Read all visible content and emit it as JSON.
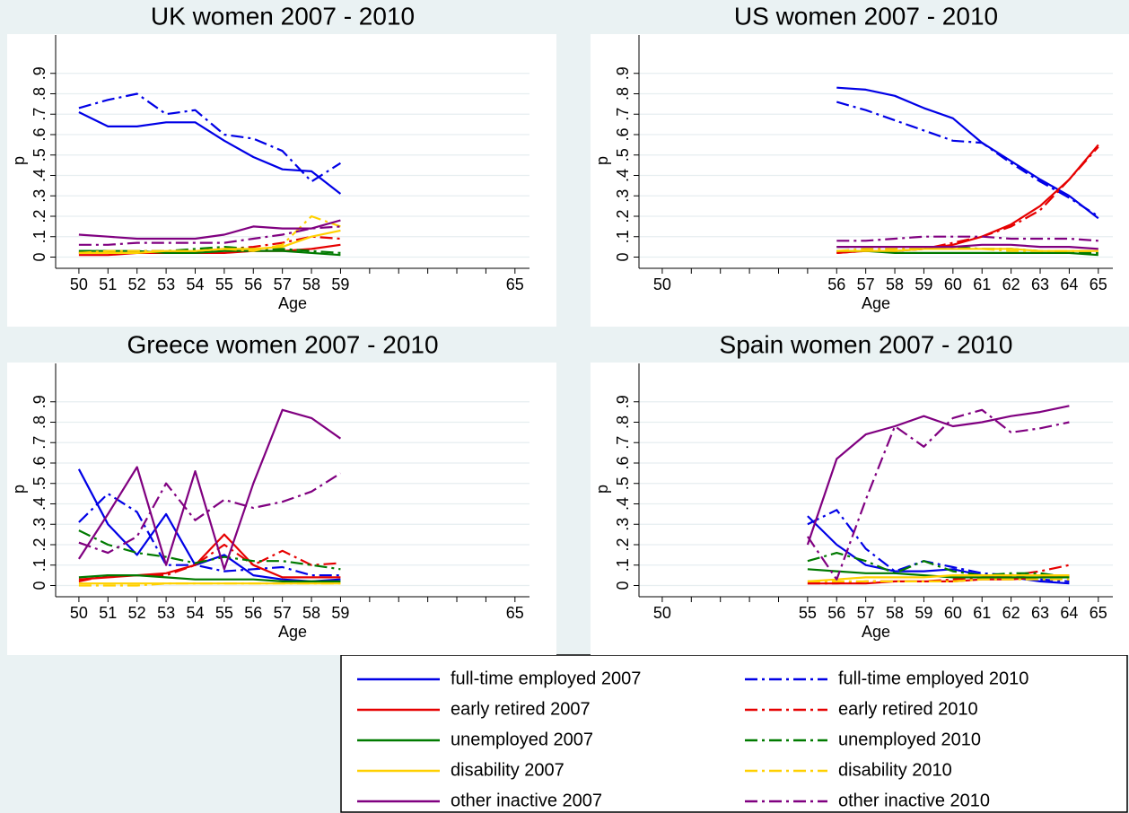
{
  "chart_data": [
    {
      "type": "line",
      "title": "UK women 2007 - 2010",
      "x_label": "Age",
      "y_label": "p",
      "x": [
        50,
        51,
        52,
        53,
        54,
        55,
        56,
        57,
        58,
        59
      ],
      "xlim": [
        49.2,
        65.5
      ],
      "ylim": [
        -0.055,
        1.0
      ],
      "xticks": [
        50,
        51,
        52,
        53,
        54,
        55,
        56,
        57,
        58,
        59,
        65
      ],
      "yticks": [
        0,
        {
          "value": 0.1,
          "label": ".1"
        },
        {
          "value": 0.2,
          "label": ".2"
        },
        {
          "value": 0.3,
          "label": ".3"
        },
        {
          "value": 0.4,
          "label": ".4"
        },
        {
          "value": 0.5,
          "label": ".5"
        },
        {
          "value": 0.6,
          "label": ".6"
        },
        {
          "value": 0.7,
          "label": ".7"
        },
        {
          "value": 0.8,
          "label": ".8"
        },
        {
          "value": 0.9,
          "label": ".9"
        }
      ],
      "grid": true,
      "series": [
        {
          "name": "full-time employed 2007",
          "color": "#0000e6",
          "linestyle": "solid",
          "values": [
            0.71,
            0.64,
            0.64,
            0.66,
            0.66,
            0.57,
            0.49,
            0.43,
            0.42,
            0.31
          ]
        },
        {
          "name": "full-time employed 2010",
          "color": "#0000e6",
          "linestyle": "dash-dot",
          "values": [
            0.73,
            0.77,
            0.8,
            0.7,
            0.72,
            0.6,
            0.58,
            0.52,
            0.37,
            0.46
          ]
        },
        {
          "name": "early retired 2007",
          "color": "#e60000",
          "linestyle": "solid",
          "values": [
            0.01,
            0.01,
            0.02,
            0.02,
            0.02,
            0.02,
            0.03,
            0.03,
            0.04,
            0.06
          ]
        },
        {
          "name": "early retired 2010",
          "color": "#e60000",
          "linestyle": "dash-dot",
          "values": [
            0.02,
            0.02,
            0.03,
            0.03,
            0.03,
            0.04,
            0.05,
            0.07,
            0.1,
            0.09
          ]
        },
        {
          "name": "unemployed 2007",
          "color": "#007a00",
          "linestyle": "solid",
          "values": [
            0.03,
            0.03,
            0.03,
            0.02,
            0.02,
            0.03,
            0.03,
            0.03,
            0.02,
            0.01
          ]
        },
        {
          "name": "unemployed 2010",
          "color": "#007a00",
          "linestyle": "dash-dot",
          "values": [
            0.03,
            0.03,
            0.03,
            0.03,
            0.04,
            0.05,
            0.04,
            0.04,
            0.03,
            0.02
          ]
        },
        {
          "name": "disability 2007",
          "color": "#ffd000",
          "linestyle": "solid",
          "values": [
            0.02,
            0.02,
            0.02,
            0.03,
            0.03,
            0.04,
            0.04,
            0.05,
            0.1,
            0.13
          ]
        },
        {
          "name": "disability 2010",
          "color": "#ffd000",
          "linestyle": "dash-dot",
          "values": [
            0.02,
            0.03,
            0.03,
            0.03,
            0.03,
            0.04,
            0.03,
            0.06,
            0.2,
            0.15
          ]
        },
        {
          "name": "other inactive 2007",
          "color": "#800080",
          "linestyle": "solid",
          "values": [
            0.11,
            0.1,
            0.09,
            0.09,
            0.09,
            0.11,
            0.15,
            0.14,
            0.14,
            0.18
          ]
        },
        {
          "name": "other inactive 2010",
          "color": "#800080",
          "linestyle": "dash-dot",
          "values": [
            0.06,
            0.06,
            0.07,
            0.07,
            0.07,
            0.07,
            0.09,
            0.11,
            0.14,
            0.15
          ]
        }
      ]
    },
    {
      "type": "line",
      "title": "US women 2007 - 2010",
      "x_label": "Age",
      "y_label": "p",
      "x": [
        56,
        57,
        58,
        59,
        60,
        61,
        62,
        63,
        64,
        65
      ],
      "xlim": [
        49.2,
        65.5
      ],
      "ylim": [
        -0.055,
        1.0
      ],
      "xticks": [
        50,
        56,
        57,
        58,
        59,
        60,
        61,
        62,
        63,
        64,
        65
      ],
      "yticks": [
        0,
        {
          "value": 0.1,
          "label": ".1"
        },
        {
          "value": 0.2,
          "label": ".2"
        },
        {
          "value": 0.3,
          "label": ".3"
        },
        {
          "value": 0.4,
          "label": ".4"
        },
        {
          "value": 0.5,
          "label": ".5"
        },
        {
          "value": 0.6,
          "label": ".6"
        },
        {
          "value": 0.7,
          "label": ".7"
        },
        {
          "value": 0.8,
          "label": ".8"
        },
        {
          "value": 0.9,
          "label": ".9"
        }
      ],
      "grid": true,
      "series": [
        {
          "name": "full-time employed 2007",
          "color": "#0000e6",
          "linestyle": "solid",
          "values": [
            0.83,
            0.82,
            0.79,
            0.73,
            0.68,
            0.56,
            0.47,
            0.38,
            0.3,
            0.19
          ]
        },
        {
          "name": "full-time employed 2010",
          "color": "#0000e6",
          "linestyle": "dash-dot",
          "values": [
            0.76,
            0.72,
            0.67,
            0.62,
            0.57,
            0.56,
            0.46,
            0.37,
            0.29,
            0.2
          ]
        },
        {
          "name": "early retired 2007",
          "color": "#e60000",
          "linestyle": "solid",
          "values": [
            0.02,
            0.03,
            0.03,
            0.04,
            0.06,
            0.1,
            0.16,
            0.25,
            0.38,
            0.55
          ]
        },
        {
          "name": "early retired 2010",
          "color": "#e60000",
          "linestyle": "dash-dot",
          "values": [
            0.02,
            0.03,
            0.03,
            0.04,
            0.07,
            0.1,
            0.15,
            0.23,
            0.38,
            0.54
          ]
        },
        {
          "name": "unemployed 2007",
          "color": "#007a00",
          "linestyle": "solid",
          "values": [
            0.03,
            0.03,
            0.02,
            0.02,
            0.02,
            0.02,
            0.02,
            0.02,
            0.02,
            0.01
          ]
        },
        {
          "name": "unemployed 2010",
          "color": "#007a00",
          "linestyle": "dash-dot",
          "values": [
            0.05,
            0.05,
            0.05,
            0.05,
            0.05,
            0.04,
            0.04,
            0.03,
            0.02,
            0.02
          ]
        },
        {
          "name": "disability 2007",
          "color": "#ffd000",
          "linestyle": "solid",
          "values": [
            0.03,
            0.03,
            0.03,
            0.04,
            0.04,
            0.04,
            0.04,
            0.03,
            0.03,
            0.03
          ]
        },
        {
          "name": "disability 2010",
          "color": "#ffd000",
          "linestyle": "dash-dot",
          "values": [
            0.03,
            0.04,
            0.04,
            0.04,
            0.04,
            0.04,
            0.03,
            0.03,
            0.03,
            0.03
          ]
        },
        {
          "name": "other inactive 2007",
          "color": "#800080",
          "linestyle": "solid",
          "values": [
            0.05,
            0.05,
            0.05,
            0.05,
            0.05,
            0.06,
            0.06,
            0.05,
            0.05,
            0.04
          ]
        },
        {
          "name": "other inactive 2010",
          "color": "#800080",
          "linestyle": "dash-dot",
          "values": [
            0.08,
            0.08,
            0.09,
            0.1,
            0.1,
            0.1,
            0.09,
            0.09,
            0.09,
            0.08
          ]
        }
      ]
    },
    {
      "type": "line",
      "title": "Greece women 2007 - 2010",
      "x_label": "Age",
      "y_label": "p",
      "x": [
        50,
        51,
        52,
        53,
        54,
        55,
        56,
        57,
        58,
        59
      ],
      "xlim": [
        49.2,
        65.5
      ],
      "ylim": [
        -0.055,
        1.0
      ],
      "xticks": [
        50,
        51,
        52,
        53,
        54,
        55,
        56,
        57,
        58,
        59,
        65
      ],
      "yticks": [
        0,
        {
          "value": 0.1,
          "label": ".1"
        },
        {
          "value": 0.2,
          "label": ".2"
        },
        {
          "value": 0.3,
          "label": ".3"
        },
        {
          "value": 0.4,
          "label": ".4"
        },
        {
          "value": 0.5,
          "label": ".5"
        },
        {
          "value": 0.6,
          "label": ".6"
        },
        {
          "value": 0.7,
          "label": ".7"
        },
        {
          "value": 0.8,
          "label": ".8"
        },
        {
          "value": 0.9,
          "label": ".9"
        }
      ],
      "grid": true,
      "series": [
        {
          "name": "full-time employed 2007",
          "color": "#0000e6",
          "linestyle": "solid",
          "values": [
            0.57,
            0.3,
            0.15,
            0.35,
            0.1,
            0.15,
            0.05,
            0.03,
            0.02,
            0.03
          ]
        },
        {
          "name": "full-time employed 2010",
          "color": "#0000e6",
          "linestyle": "dash-dot",
          "values": [
            0.31,
            0.45,
            0.36,
            0.1,
            0.1,
            0.07,
            0.08,
            0.09,
            0.05,
            0.05
          ]
        },
        {
          "name": "early retired 2007",
          "color": "#e60000",
          "linestyle": "solid",
          "values": [
            0.03,
            0.04,
            0.05,
            0.06,
            0.1,
            0.25,
            0.1,
            0.04,
            0.04,
            0.04
          ]
        },
        {
          "name": "early retired 2010",
          "color": "#e60000",
          "linestyle": "dash-dot",
          "values": [
            0.02,
            0.05,
            0.05,
            0.05,
            0.1,
            0.2,
            0.1,
            0.17,
            0.1,
            0.11
          ]
        },
        {
          "name": "unemployed 2007",
          "color": "#007a00",
          "linestyle": "solid",
          "values": [
            0.04,
            0.05,
            0.05,
            0.04,
            0.03,
            0.03,
            0.03,
            0.02,
            0.02,
            0.02
          ]
        },
        {
          "name": "unemployed 2010",
          "color": "#007a00",
          "linestyle": "dash-dot",
          "values": [
            0.27,
            0.2,
            0.16,
            0.14,
            0.11,
            0.14,
            0.12,
            0.12,
            0.1,
            0.08
          ]
        },
        {
          "name": "disability 2007",
          "color": "#ffd000",
          "linestyle": "solid",
          "values": [
            0.01,
            0.01,
            0.01,
            0.01,
            0.01,
            0.01,
            0.01,
            0.01,
            0.01,
            0.01
          ]
        },
        {
          "name": "disability 2010",
          "color": "#ffd000",
          "linestyle": "dash-dot",
          "values": [
            0.0,
            0.0,
            0.0,
            0.01,
            0.01,
            0.01,
            0.01,
            0.01,
            0.01,
            0.01
          ]
        },
        {
          "name": "other inactive 2007",
          "color": "#800080",
          "linestyle": "solid",
          "values": [
            0.13,
            0.35,
            0.58,
            0.1,
            0.56,
            0.08,
            0.5,
            0.86,
            0.82,
            0.72
          ]
        },
        {
          "name": "other inactive 2010",
          "color": "#800080",
          "linestyle": "dash-dot",
          "values": [
            0.21,
            0.16,
            0.24,
            0.5,
            0.32,
            0.42,
            0.38,
            0.41,
            0.46,
            0.55
          ]
        }
      ]
    },
    {
      "type": "line",
      "title": "Spain women 2007 - 2010",
      "x_label": "Age",
      "y_label": "p",
      "x": [
        55,
        56,
        57,
        58,
        59,
        60,
        61,
        62,
        63,
        64
      ],
      "xlim": [
        49.2,
        65.5
      ],
      "ylim": [
        -0.055,
        1.0
      ],
      "xticks": [
        50,
        55,
        56,
        57,
        58,
        59,
        60,
        61,
        62,
        63,
        64,
        65
      ],
      "yticks": [
        0,
        {
          "value": 0.1,
          "label": ".1"
        },
        {
          "value": 0.2,
          "label": ".2"
        },
        {
          "value": 0.3,
          "label": ".3"
        },
        {
          "value": 0.4,
          "label": ".4"
        },
        {
          "value": 0.5,
          "label": ".5"
        },
        {
          "value": 0.6,
          "label": ".6"
        },
        {
          "value": 0.7,
          "label": ".7"
        },
        {
          "value": 0.8,
          "label": ".8"
        },
        {
          "value": 0.9,
          "label": ".9"
        }
      ],
      "grid": true,
      "series": [
        {
          "name": "full-time employed 2007",
          "color": "#0000e6",
          "linestyle": "solid",
          "values": [
            0.34,
            0.2,
            0.1,
            0.07,
            0.07,
            0.08,
            0.05,
            0.04,
            0.02,
            0.01
          ]
        },
        {
          "name": "full-time employed 2010",
          "color": "#0000e6",
          "linestyle": "dash-dot",
          "values": [
            0.3,
            0.37,
            0.18,
            0.07,
            0.12,
            0.09,
            0.06,
            0.05,
            0.03,
            0.02
          ]
        },
        {
          "name": "early retired 2007",
          "color": "#e60000",
          "linestyle": "solid",
          "values": [
            0.01,
            0.01,
            0.01,
            0.02,
            0.02,
            0.02,
            0.03,
            0.03,
            0.04,
            0.05
          ]
        },
        {
          "name": "early retired 2010",
          "color": "#e60000",
          "linestyle": "dash-dot",
          "values": [
            0.01,
            0.01,
            0.02,
            0.02,
            0.02,
            0.03,
            0.04,
            0.05,
            0.07,
            0.1
          ]
        },
        {
          "name": "unemployed 2007",
          "color": "#007a00",
          "linestyle": "solid",
          "values": [
            0.08,
            0.07,
            0.06,
            0.06,
            0.05,
            0.04,
            0.04,
            0.04,
            0.04,
            0.04
          ]
        },
        {
          "name": "unemployed 2010",
          "color": "#007a00",
          "linestyle": "dash-dot",
          "values": [
            0.12,
            0.16,
            0.12,
            0.06,
            0.12,
            0.07,
            0.05,
            0.06,
            0.06,
            0.04
          ]
        },
        {
          "name": "disability 2007",
          "color": "#ffd000",
          "linestyle": "solid",
          "values": [
            0.02,
            0.03,
            0.04,
            0.04,
            0.04,
            0.05,
            0.05,
            0.05,
            0.05,
            0.05
          ]
        },
        {
          "name": "disability 2010",
          "color": "#ffd000",
          "linestyle": "dash-dot",
          "values": [
            0.02,
            0.02,
            0.02,
            0.02,
            0.02,
            0.02,
            0.03,
            0.03,
            0.03,
            0.03
          ]
        },
        {
          "name": "other inactive 2007",
          "color": "#800080",
          "linestyle": "solid",
          "values": [
            0.2,
            0.62,
            0.74,
            0.78,
            0.83,
            0.78,
            0.8,
            0.83,
            0.85,
            0.88
          ]
        },
        {
          "name": "other inactive 2010",
          "color": "#800080",
          "linestyle": "dash-dot",
          "values": [
            0.24,
            0.03,
            0.42,
            0.78,
            0.68,
            0.82,
            0.86,
            0.75,
            0.77,
            0.8
          ]
        }
      ]
    }
  ]
}
